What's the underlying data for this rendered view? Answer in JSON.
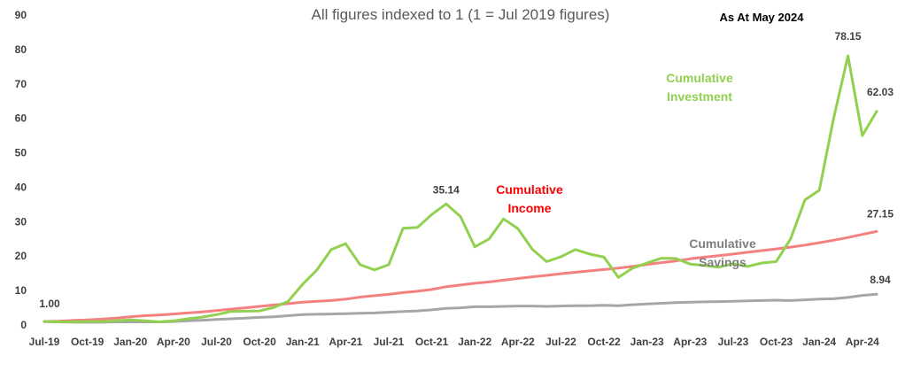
{
  "chart_data": {
    "type": "line",
    "title": "All figures indexed to 1 (1 = Jul 2019 figures)",
    "as_at": "As At May 2024",
    "ylim": [
      0,
      90
    ],
    "yticks": [
      0,
      10,
      20,
      30,
      40,
      50,
      60,
      70,
      80,
      90
    ],
    "grid": false,
    "legend": "inline labels",
    "x_labels": [
      "Jul-19",
      "Oct-19",
      "Jan-20",
      "Apr-20",
      "Jul-20",
      "Oct-20",
      "Jan-21",
      "Apr-21",
      "Jul-21",
      "Oct-21",
      "Jan-22",
      "Apr-22",
      "Jul-22",
      "Oct-22",
      "Jan-23",
      "Apr-23",
      "Jul-23",
      "Oct-23",
      "Jan-24",
      "Apr-24"
    ],
    "x": [
      "Jul-19",
      "Aug-19",
      "Sep-19",
      "Oct-19",
      "Nov-19",
      "Dec-19",
      "Jan-20",
      "Feb-20",
      "Mar-20",
      "Apr-20",
      "May-20",
      "Jun-20",
      "Jul-20",
      "Aug-20",
      "Sep-20",
      "Oct-20",
      "Nov-20",
      "Dec-20",
      "Jan-21",
      "Feb-21",
      "Mar-21",
      "Apr-21",
      "May-21",
      "Jun-21",
      "Jul-21",
      "Aug-21",
      "Sep-21",
      "Oct-21",
      "Nov-21",
      "Dec-21",
      "Jan-22",
      "Feb-22",
      "Mar-22",
      "Apr-22",
      "May-22",
      "Jun-22",
      "Jul-22",
      "Aug-22",
      "Sep-22",
      "Oct-22",
      "Nov-22",
      "Dec-22",
      "Jan-23",
      "Feb-23",
      "Mar-23",
      "Apr-23",
      "May-23",
      "Jun-23",
      "Jul-23",
      "Aug-23",
      "Sep-23",
      "Oct-23",
      "Nov-23",
      "Dec-23",
      "Jan-24",
      "Feb-24",
      "Mar-24",
      "Apr-24",
      "May-24"
    ],
    "series": [
      {
        "name": "Cumulative Investment",
        "color": "#92d050",
        "values": [
          1.0,
          0.9,
          0.9,
          1.0,
          1.0,
          1.2,
          1.5,
          1.2,
          0.9,
          1.2,
          1.8,
          2.3,
          3.0,
          3.9,
          4.0,
          4.1,
          5.1,
          6.9,
          11.8,
          16.0,
          21.9,
          23.6,
          17.5,
          16.0,
          17.5,
          28.1,
          28.3,
          32.1,
          35.14,
          31.5,
          22.7,
          25.0,
          30.8,
          28.0,
          22.0,
          18.4,
          19.8,
          21.9,
          20.6,
          19.7,
          13.8,
          16.5,
          18.0,
          19.4,
          19.3,
          17.7,
          17.3,
          16.8,
          17.8,
          17.0,
          18.0,
          18.4,
          25.0,
          36.3,
          39.1,
          60.0,
          78.15,
          55.0,
          62.03
        ]
      },
      {
        "name": "Cumulative Income",
        "color": "#f4817f",
        "values": [
          1.0,
          1.1,
          1.3,
          1.5,
          1.7,
          2.0,
          2.4,
          2.7,
          2.9,
          3.2,
          3.5,
          3.8,
          4.2,
          4.6,
          5.0,
          5.4,
          5.8,
          6.2,
          6.6,
          6.9,
          7.1,
          7.5,
          8.1,
          8.5,
          8.9,
          9.4,
          9.8,
          10.3,
          11.1,
          11.6,
          12.1,
          12.5,
          13.0,
          13.5,
          14.0,
          14.4,
          14.9,
          15.3,
          15.7,
          16.1,
          16.5,
          17.0,
          17.6,
          18.1,
          18.6,
          19.2,
          19.7,
          20.1,
          20.6,
          21.1,
          21.6,
          22.1,
          22.6,
          23.2,
          23.9,
          24.6,
          25.4,
          26.3,
          27.15
        ]
      },
      {
        "name": "Cumulative Savings",
        "color": "#a6a6a6",
        "values": [
          1.0,
          0.9,
          0.8,
          0.8,
          0.8,
          0.9,
          0.9,
          0.9,
          0.9,
          1.0,
          1.2,
          1.4,
          1.6,
          1.8,
          2.0,
          2.2,
          2.4,
          2.7,
          3.0,
          3.1,
          3.2,
          3.3,
          3.4,
          3.5,
          3.7,
          3.9,
          4.1,
          4.4,
          4.8,
          5.0,
          5.3,
          5.3,
          5.4,
          5.5,
          5.5,
          5.4,
          5.5,
          5.6,
          5.6,
          5.7,
          5.6,
          5.9,
          6.1,
          6.3,
          6.5,
          6.6,
          6.7,
          6.8,
          6.9,
          7.0,
          7.1,
          7.2,
          7.1,
          7.3,
          7.5,
          7.6,
          8.0,
          8.6,
          8.94
        ]
      }
    ],
    "data_labels": [
      {
        "text": "1.00",
        "index": 0,
        "value": 1.0
      },
      {
        "text": "35.14",
        "index": 28,
        "value": 35.14
      },
      {
        "text": "78.15",
        "index": 56,
        "value": 78.15
      },
      {
        "text": "62.03",
        "index": 58,
        "value": 62.03
      },
      {
        "text": "27.15",
        "index": 58,
        "value": 27.15
      },
      {
        "text": "8.94",
        "index": 58,
        "value": 8.94
      }
    ],
    "series_labels": [
      {
        "lines": [
          "Cumulative",
          "Investment"
        ],
        "color": "#92d050"
      },
      {
        "lines": [
          "Cumulative",
          "Income"
        ],
        "color": "#ff0000"
      },
      {
        "lines": [
          "Cumulative",
          "Savings"
        ],
        "color": "#7f7f7f"
      }
    ]
  }
}
